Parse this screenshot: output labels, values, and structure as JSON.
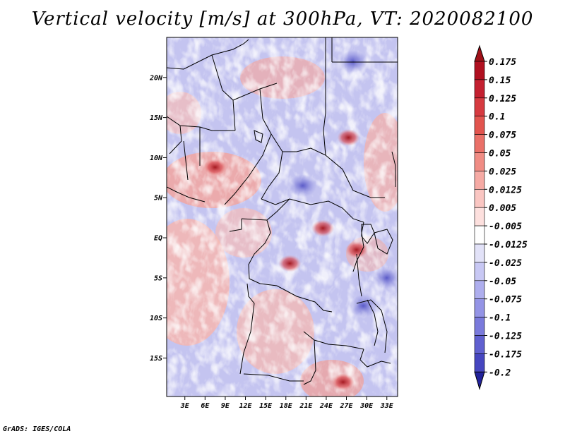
{
  "title": "Vertical velocity [m/s] at 300hPa, VT: 2020082100",
  "credit": "GrADS: IGES/COLA",
  "chart_data": {
    "type": "heatmap",
    "title": "Vertical velocity [m/s] at 300hPa, VT: 2020082100",
    "variable": "Vertical velocity",
    "units": "m/s",
    "level": "300hPa",
    "valid_time": "2020082100",
    "xlabel": "",
    "ylabel": "",
    "x_ticks": [
      {
        "value": 3,
        "label": "3E"
      },
      {
        "value": 6,
        "label": "6E"
      },
      {
        "value": 9,
        "label": "9E"
      },
      {
        "value": 12,
        "label": "12E"
      },
      {
        "value": 15,
        "label": "15E"
      },
      {
        "value": 18,
        "label": "18E"
      },
      {
        "value": 21,
        "label": "21E"
      },
      {
        "value": 24,
        "label": "24E"
      },
      {
        "value": 27,
        "label": "27E"
      },
      {
        "value": 30,
        "label": "30E"
      },
      {
        "value": 33,
        "label": "33E"
      }
    ],
    "y_ticks": [
      {
        "value": 20,
        "label": "20N"
      },
      {
        "value": 15,
        "label": "15N"
      },
      {
        "value": 10,
        "label": "10N"
      },
      {
        "value": 5,
        "label": "5N"
      },
      {
        "value": 0,
        "label": "EQ"
      },
      {
        "value": -5,
        "label": "5S"
      },
      {
        "value": -10,
        "label": "10S"
      },
      {
        "value": -15,
        "label": "15S"
      }
    ],
    "xlim": [
      0.3,
      34.6
    ],
    "ylim": [
      -19.8,
      25
    ],
    "colorbar": {
      "levels": [
        {
          "label": "0.175",
          "color": "#b01020"
        },
        {
          "label": "0.15",
          "color": "#c42030"
        },
        {
          "label": "0.125",
          "color": "#d63a40"
        },
        {
          "label": "0.1",
          "color": "#e2544e"
        },
        {
          "label": "0.075",
          "color": "#ea7068"
        },
        {
          "label": "0.05",
          "color": "#f08c84"
        },
        {
          "label": "0.025",
          "color": "#f6aaa4"
        },
        {
          "label": "0.0125",
          "color": "#fac6c2"
        },
        {
          "label": "0.005",
          "color": "#fde0de"
        },
        {
          "label": "-0.005",
          "color": "#ffffff"
        },
        {
          "label": "-0.0125",
          "color": "#e2e2f8"
        },
        {
          "label": "-0.025",
          "color": "#c8c8f4"
        },
        {
          "label": "-0.05",
          "color": "#aeaeee"
        },
        {
          "label": "-0.075",
          "color": "#9494e6"
        },
        {
          "label": "-0.1",
          "color": "#7a7adc"
        },
        {
          "label": "-0.125",
          "color": "#6060d0"
        },
        {
          "label": "-0.175",
          "color": "#4646c0"
        },
        {
          "label": "-0.2",
          "color": "#2c2cac"
        }
      ],
      "top_color": "#a01018",
      "bottom_color": "#22229a"
    },
    "features": [
      {
        "name": "strong ascent",
        "lon": 27.3,
        "lat": 12.5,
        "sign": "up"
      },
      {
        "name": "strong ascent",
        "lon": 18.6,
        "lat": -3.2,
        "sign": "up"
      },
      {
        "name": "strong ascent",
        "lon": 23.5,
        "lat": 1.2,
        "sign": "up"
      },
      {
        "name": "strong ascent",
        "lon": 7.5,
        "lat": 8.8,
        "sign": "up"
      },
      {
        "name": "strong ascent",
        "lon": 26.5,
        "lat": -18.0,
        "sign": "up"
      },
      {
        "name": "strong ascent",
        "lon": 28.5,
        "lat": -1.5,
        "sign": "up"
      },
      {
        "name": "strong descent",
        "lon": 29.5,
        "lat": -8.5,
        "sign": "down"
      },
      {
        "name": "strong descent",
        "lon": 28.0,
        "lat": 22.0,
        "sign": "down"
      },
      {
        "name": "strong descent",
        "lon": 33.0,
        "lat": -5.0,
        "sign": "down"
      },
      {
        "name": "strong descent",
        "lon": 20.5,
        "lat": 6.5,
        "sign": "down"
      }
    ]
  }
}
